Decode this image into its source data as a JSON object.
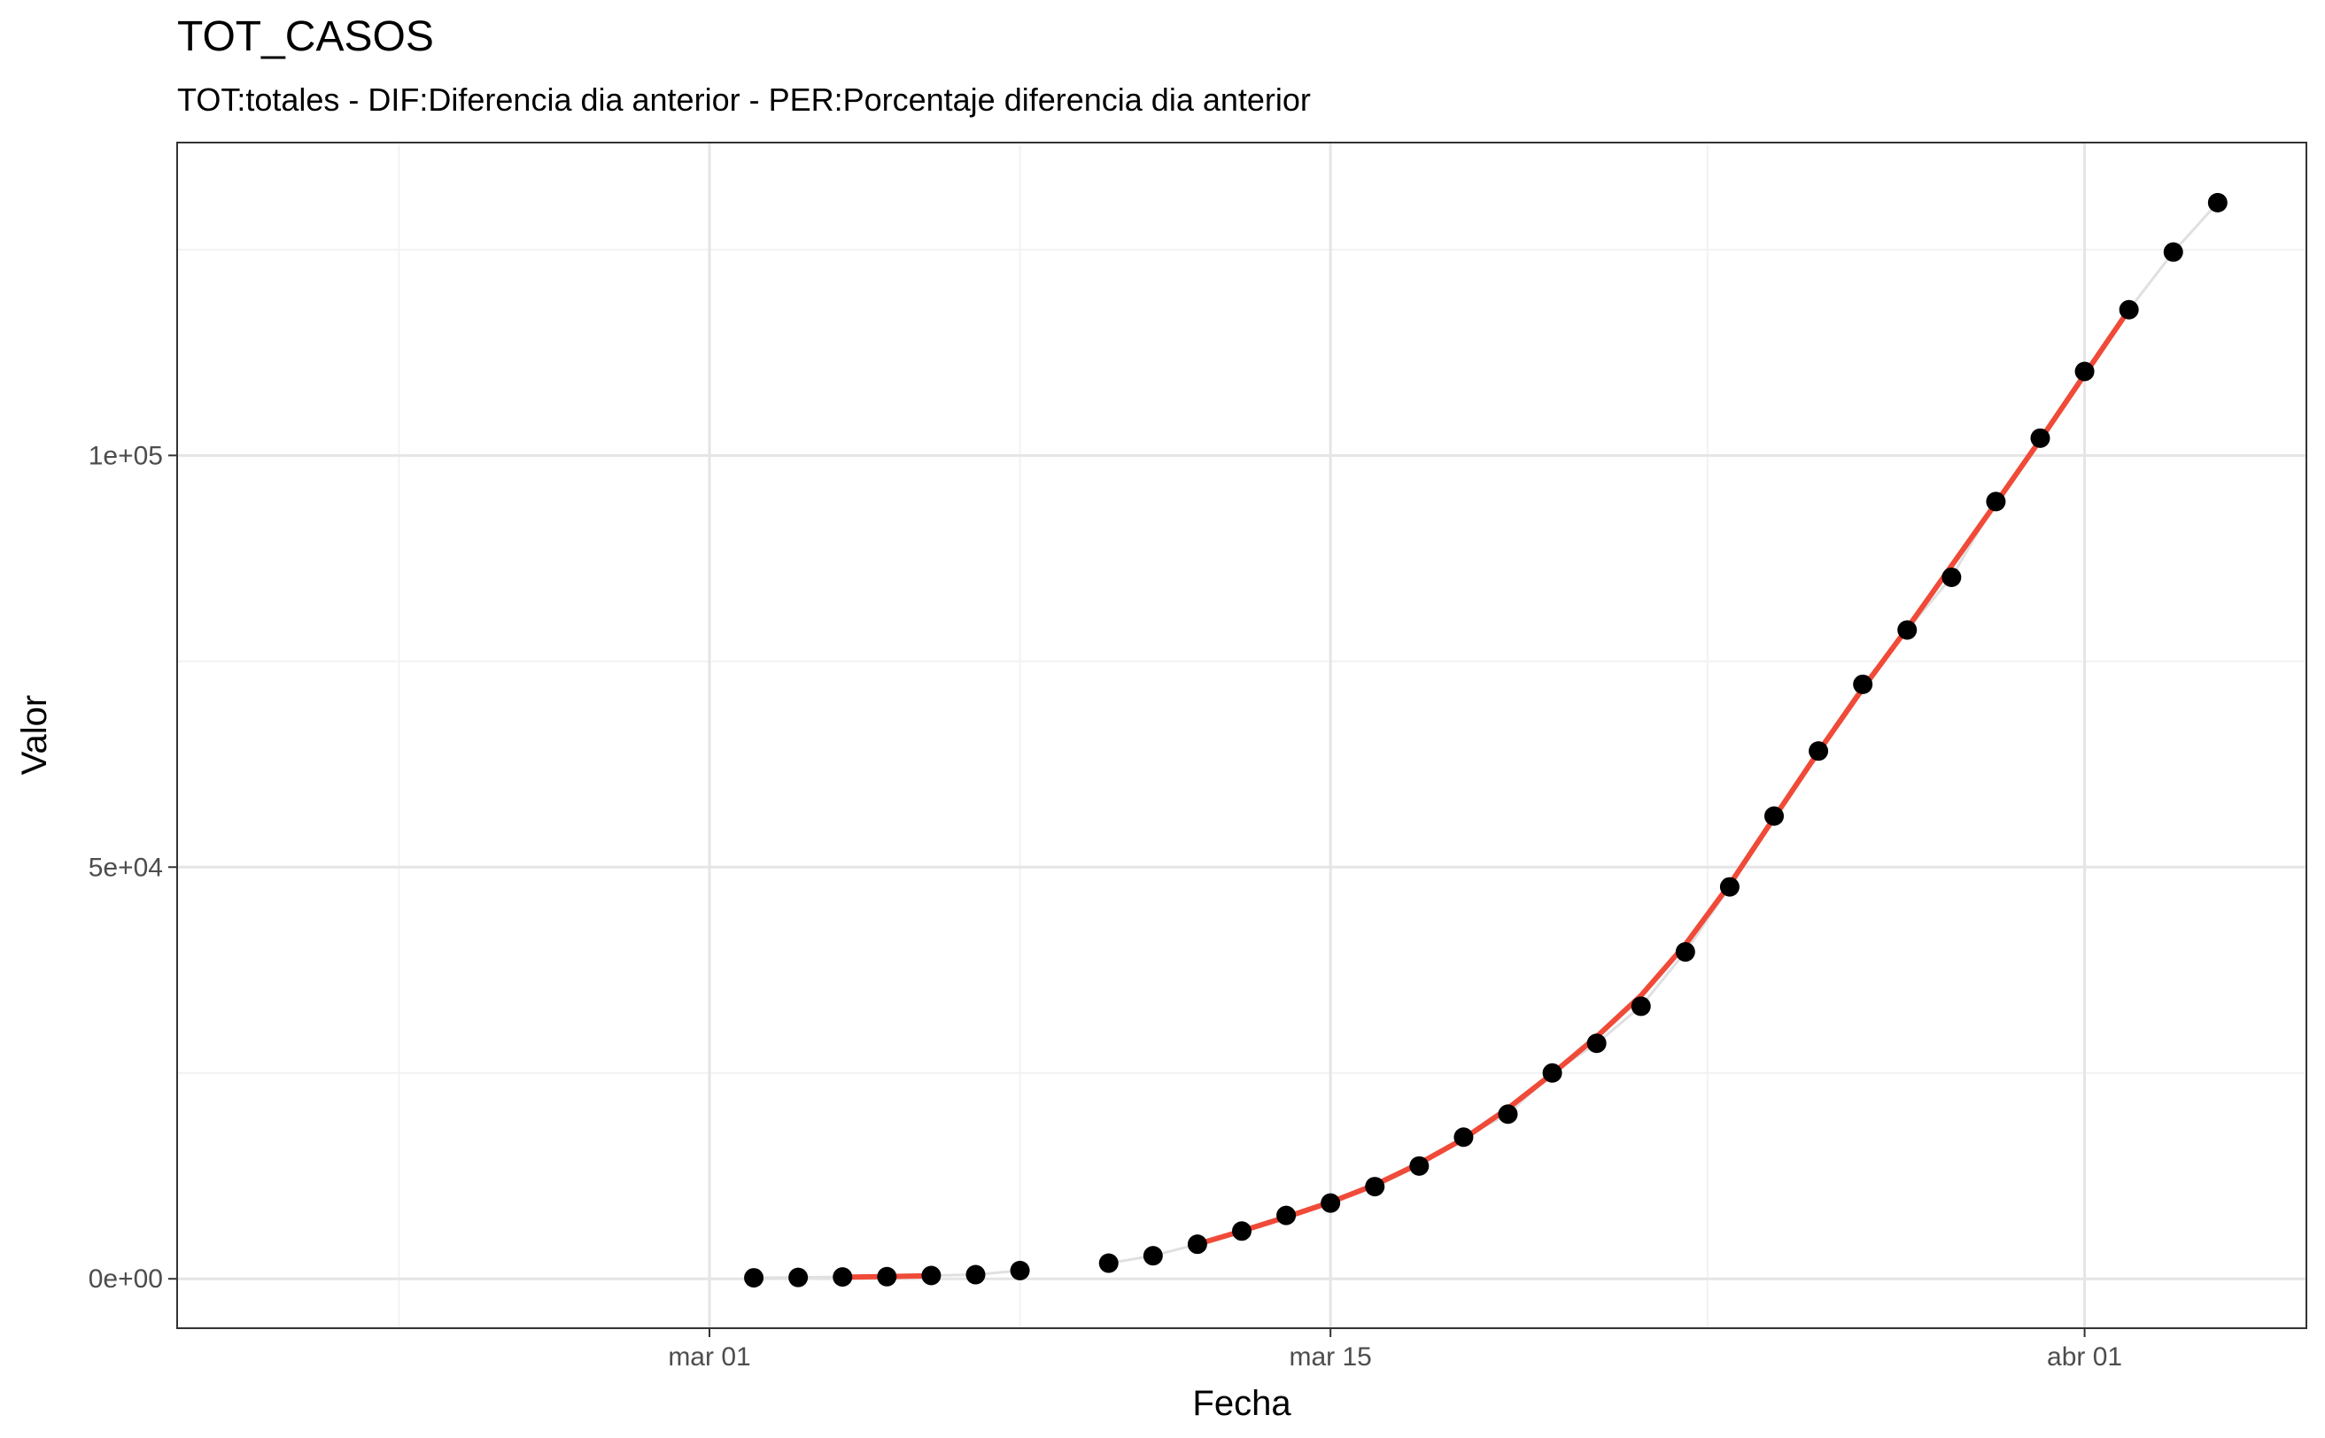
{
  "chart_data": {
    "type": "scatter",
    "title": "TOT_CASOS",
    "subtitle": "TOT:totales - DIF:Diferencia dia anterior - PER:Porcentaje diferencia dia anterior",
    "xlabel": "Fecha",
    "ylabel": "Valor",
    "x_ticks": [
      {
        "date": "2020-03-01",
        "label": "mar 01"
      },
      {
        "date": "2020-03-15",
        "label": "mar 15"
      },
      {
        "date": "2020-04-01",
        "label": "abr 01"
      }
    ],
    "y_ticks": [
      {
        "value": 0,
        "label": "0e+00"
      },
      {
        "value": 50000,
        "label": "5e+04"
      },
      {
        "value": 100000,
        "label": "1e+05"
      }
    ],
    "xlim": [
      "2020-02-18",
      "2020-04-06"
    ],
    "ylim": [
      -6000,
      138000
    ],
    "grid": true,
    "colors": {
      "points": "#000000",
      "trend": "#f04a38",
      "connector": "#e0e0e0",
      "grid_major": "#e5e5e5",
      "grid_minor": "#f2f2f2",
      "panel_border": "#333333"
    },
    "series": [
      {
        "values": [
          {
            "x": "2020-03-02",
            "y": 120
          },
          {
            "x": "2020-03-03",
            "y": 165
          },
          {
            "x": "2020-03-04",
            "y": 222
          },
          {
            "x": "2020-03-05",
            "y": 259
          },
          {
            "x": "2020-03-06",
            "y": 400
          },
          {
            "x": "2020-03-07",
            "y": 500
          },
          {
            "x": "2020-03-08",
            "y": 1000
          },
          {
            "x": "2020-03-10",
            "y": 1900
          },
          {
            "x": "2020-03-11",
            "y": 2800
          },
          {
            "x": "2020-03-12",
            "y": 4200
          },
          {
            "x": "2020-03-13",
            "y": 5800
          },
          {
            "x": "2020-03-14",
            "y": 7700
          },
          {
            "x": "2020-03-15",
            "y": 9200
          },
          {
            "x": "2020-03-16",
            "y": 11200
          },
          {
            "x": "2020-03-17",
            "y": 13700
          },
          {
            "x": "2020-03-18",
            "y": 17200
          },
          {
            "x": "2020-03-19",
            "y": 20000
          },
          {
            "x": "2020-03-20",
            "y": 25000
          },
          {
            "x": "2020-03-21",
            "y": 28600
          },
          {
            "x": "2020-03-22",
            "y": 33100
          },
          {
            "x": "2020-03-23",
            "y": 39700
          },
          {
            "x": "2020-03-24",
            "y": 47600
          },
          {
            "x": "2020-03-25",
            "y": 56200
          },
          {
            "x": "2020-03-26",
            "y": 64100
          },
          {
            "x": "2020-03-27",
            "y": 72200
          },
          {
            "x": "2020-03-28",
            "y": 78800
          },
          {
            "x": "2020-03-29",
            "y": 85200
          },
          {
            "x": "2020-03-30",
            "y": 94400
          },
          {
            "x": "2020-03-31",
            "y": 102100
          },
          {
            "x": "2020-04-01",
            "y": 110200
          },
          {
            "x": "2020-04-02",
            "y": 117700
          },
          {
            "x": "2020-04-03",
            "y": 124700
          },
          {
            "x": "2020-04-04",
            "y": 130700
          }
        ]
      }
    ],
    "trend_segments": [
      [
        {
          "x": "2020-03-04",
          "y": 200
        },
        {
          "x": "2020-03-05",
          "y": 280
        },
        {
          "x": "2020-03-06",
          "y": 370
        }
      ],
      [
        {
          "x": "2020-03-12",
          "y": 4200
        },
        {
          "x": "2020-03-13",
          "y": 5800
        },
        {
          "x": "2020-03-14",
          "y": 7500
        },
        {
          "x": "2020-03-15",
          "y": 9300
        },
        {
          "x": "2020-03-16",
          "y": 11400
        },
        {
          "x": "2020-03-17",
          "y": 14000
        },
        {
          "x": "2020-03-18",
          "y": 17000
        },
        {
          "x": "2020-03-19",
          "y": 20700
        },
        {
          "x": "2020-03-20",
          "y": 24900
        },
        {
          "x": "2020-03-21",
          "y": 29400
        },
        {
          "x": "2020-03-22",
          "y": 34400
        },
        {
          "x": "2020-03-23",
          "y": 40600
        },
        {
          "x": "2020-03-24",
          "y": 47900
        },
        {
          "x": "2020-03-25",
          "y": 56000
        },
        {
          "x": "2020-03-26",
          "y": 64000
        },
        {
          "x": "2020-03-27",
          "y": 71700
        },
        {
          "x": "2020-03-28",
          "y": 79000
        },
        {
          "x": "2020-03-29",
          "y": 86600
        },
        {
          "x": "2020-03-30",
          "y": 94200
        },
        {
          "x": "2020-03-31",
          "y": 101900
        },
        {
          "x": "2020-04-01",
          "y": 109800
        },
        {
          "x": "2020-04-02",
          "y": 117700
        }
      ]
    ]
  }
}
